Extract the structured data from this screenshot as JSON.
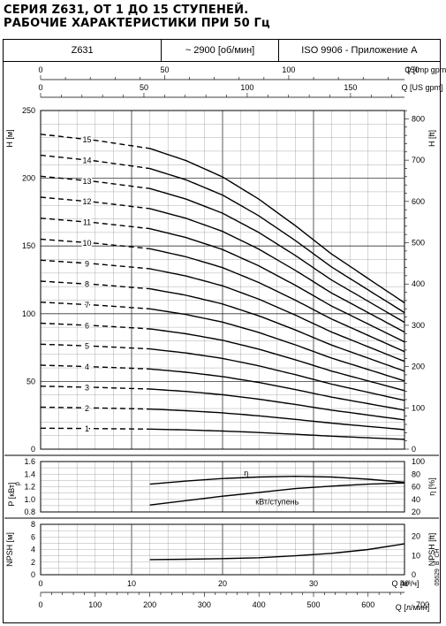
{
  "header": {
    "title_line1": "СЕРИЯ Z631, ОТ 1 ДО 15 СТУПЕНЕЙ.",
    "title_line2": "РАБОЧИЕ ХАРАКТЕРИСТИКИ ПРИ 50 Гц",
    "model": "Z631",
    "speed": "~ 2900 [об/мин]",
    "standard": "ISO 9906 - Приложение A"
  },
  "side_code": "05629_B_CH",
  "chart_data": [
    {
      "type": "line",
      "name": "head",
      "ylabel_left": "H [м]",
      "ylabel_right": "H [ft]",
      "xlabel_top1": "Q [Imp gpm]",
      "xlabel_top2": "Q [US gpm]",
      "ylim": [
        0,
        250
      ],
      "xlim_m3h": [
        0,
        40
      ],
      "yticks_left": [
        0,
        50,
        100,
        150,
        200,
        250
      ],
      "yticks_right": [
        0,
        100,
        200,
        300,
        400,
        500,
        600,
        700,
        800
      ],
      "top_ticks_imp": [
        0,
        50,
        100,
        150
      ],
      "top_ticks_us": [
        0,
        50,
        100,
        150,
        200
      ],
      "dashed_until_m3h": 12,
      "single_stage_head": [
        {
          "q": 0,
          "h": 15.5
        },
        {
          "q": 6,
          "h": 15.2
        },
        {
          "q": 12,
          "h": 14.8
        },
        {
          "q": 16,
          "h": 14.2
        },
        {
          "q": 20,
          "h": 13.4
        },
        {
          "q": 24,
          "h": 12.3
        },
        {
          "q": 28,
          "h": 11.0
        },
        {
          "q": 32,
          "h": 9.6
        },
        {
          "q": 36,
          "h": 8.4
        },
        {
          "q": 40,
          "h": 7.2
        }
      ],
      "stages": [
        "1",
        "2",
        "3",
        "4",
        "5",
        "6",
        "7",
        "8",
        "9",
        "10",
        "11",
        "12",
        "13",
        "14",
        "15"
      ],
      "grid": true
    },
    {
      "type": "line",
      "name": "power-efficiency",
      "ylabel_left": "P [кВт]",
      "ylabel_left_sub": "p",
      "ylabel_right": "η [%]",
      "ylim_left": [
        0.8,
        1.6
      ],
      "ylim_right": [
        20,
        100
      ],
      "yticks_left": [
        "0.8",
        "1.0",
        "1.2",
        "1.4",
        "1.6"
      ],
      "yticks_right": [
        "20",
        "40",
        "60",
        "80",
        "100"
      ],
      "series": [
        {
          "name": "η",
          "x": [
            12,
            16,
            20,
            24,
            28,
            32,
            36,
            40
          ],
          "y": [
            64,
            69,
            73,
            75.5,
            76.5,
            75.5,
            72,
            67
          ]
        },
        {
          "name": "кВт/ступень",
          "x": [
            12,
            16,
            20,
            24,
            28,
            32,
            36,
            40
          ],
          "y": [
            0.91,
            0.98,
            1.05,
            1.11,
            1.17,
            1.21,
            1.24,
            1.26
          ]
        }
      ]
    },
    {
      "type": "line",
      "name": "npsh",
      "ylabel_left": "NPSH [м]",
      "ylabel_right": "NPSH [ft]",
      "ylim": [
        0,
        8
      ],
      "yticks_left": [
        0,
        2,
        4,
        6,
        8
      ],
      "yticks_right": [
        0,
        10,
        20
      ],
      "xlabel_m3h": "Q [м³/ч]",
      "xlabel_lmin": "Q [л/мин]",
      "xticks_m3h": [
        0,
        10,
        20,
        30,
        40
      ],
      "xticks_lmin": [
        0,
        100,
        200,
        300,
        400,
        500,
        600,
        700
      ],
      "series": [
        {
          "name": "NPSH",
          "x": [
            12,
            16,
            20,
            24,
            28,
            32,
            36,
            40
          ],
          "y": [
            2.4,
            2.45,
            2.55,
            2.7,
            3.0,
            3.4,
            4.0,
            4.9
          ]
        }
      ]
    }
  ]
}
